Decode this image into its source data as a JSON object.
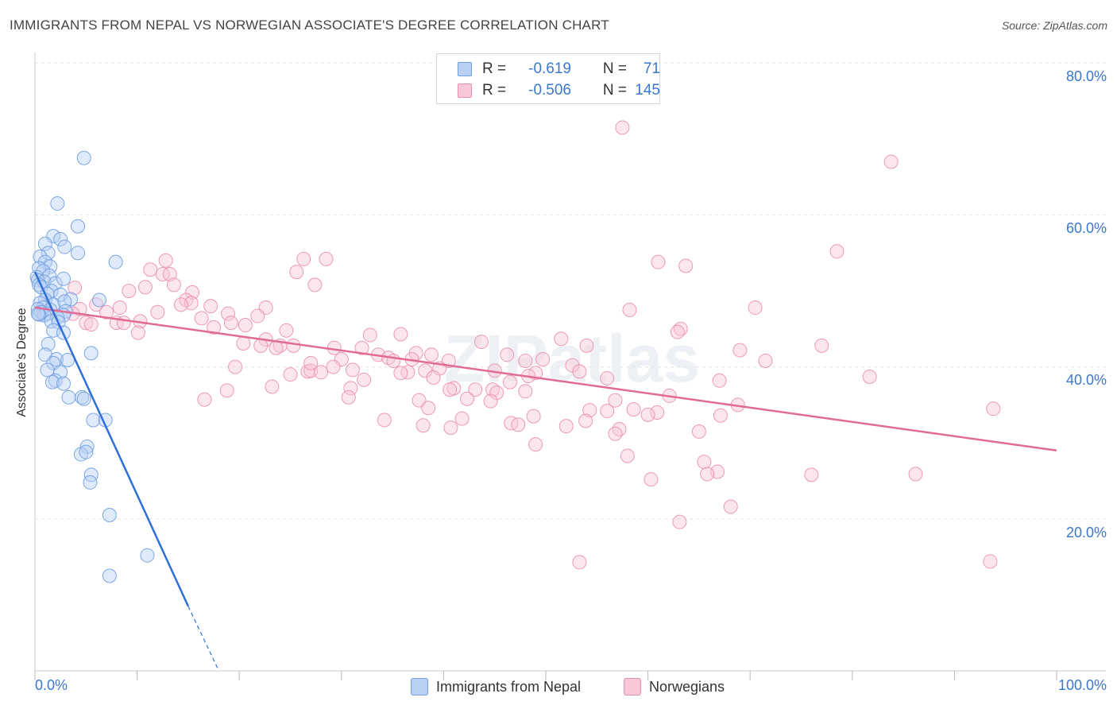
{
  "title": "IMMIGRANTS FROM NEPAL VS NORWEGIAN ASSOCIATE'S DEGREE CORRELATION CHART",
  "source": "Source: ZipAtlas.com",
  "watermark": "ZIPatlas",
  "colors": {
    "blue_fill": "#b8d0f3",
    "blue_stroke": "#6f9fe0",
    "blue_line": "#2f6fd8",
    "pink_fill": "#f9c7d6",
    "pink_stroke": "#ec8fae",
    "pink_line": "#e06b97",
    "accent_text": "#3a78d0"
  },
  "legend": {
    "rows": [
      {
        "r_label": "R =",
        "r_value": "-0.619",
        "n_label": "N =",
        "n_value": "71"
      },
      {
        "r_label": "R =",
        "r_value": "-0.506",
        "n_label": "N =",
        "n_value": "145"
      }
    ]
  },
  "bottom_legend": {
    "series1": "Immigrants from Nepal",
    "series2": "Norwegians"
  },
  "axes": {
    "x_min_label": "0.0%",
    "x_max_label": "100.0%",
    "y_ticks": [
      "80.0%",
      "60.0%",
      "40.0%",
      "20.0%"
    ],
    "ylabel": "Associate's Degree"
  },
  "chart_data": {
    "type": "scatter",
    "title": "IMMIGRANTS FROM NEPAL VS NORWEGIAN ASSOCIATE'S DEGREE CORRELATION CHART",
    "xlabel": "",
    "ylabel": "Associate's Degree",
    "xlim": [
      0,
      100
    ],
    "ylim": [
      0,
      82
    ],
    "series": [
      {
        "name": "Immigrants from Nepal",
        "R": -0.619,
        "N": 71,
        "trend": {
          "x": [
            0,
            15
          ],
          "y": [
            52.5,
            8.5
          ],
          "dashed_to": {
            "x": 18,
            "y": 0
          }
        },
        "points": [
          [
            4.8,
            67.5
          ],
          [
            2.2,
            61.5
          ],
          [
            4.2,
            58.5
          ],
          [
            1.8,
            57.2
          ],
          [
            2.5,
            56.8
          ],
          [
            1.0,
            56.2
          ],
          [
            2.9,
            55.8
          ],
          [
            4.2,
            55.0
          ],
          [
            1.3,
            55.0
          ],
          [
            0.5,
            54.5
          ],
          [
            1.0,
            53.8
          ],
          [
            7.9,
            53.8
          ],
          [
            1.5,
            53.2
          ],
          [
            0.4,
            53.0
          ],
          [
            0.8,
            52.6
          ],
          [
            1.4,
            52.0
          ],
          [
            0.2,
            51.8
          ],
          [
            0.3,
            51.4
          ],
          [
            0.9,
            51.2
          ],
          [
            2.0,
            51.0
          ],
          [
            0.4,
            50.8
          ],
          [
            2.8,
            51.6
          ],
          [
            0.6,
            50.5
          ],
          [
            1.6,
            50.0
          ],
          [
            1.2,
            49.6
          ],
          [
            2.5,
            49.5
          ],
          [
            6.3,
            48.8
          ],
          [
            3.5,
            48.9
          ],
          [
            1.0,
            48.8
          ],
          [
            0.5,
            48.4
          ],
          [
            1.8,
            48.2
          ],
          [
            2.9,
            48.6
          ],
          [
            0.8,
            47.8
          ],
          [
            0.3,
            47.6
          ],
          [
            1.5,
            47.5
          ],
          [
            3.0,
            47.3
          ],
          [
            1.2,
            47.0
          ],
          [
            0.6,
            47.2
          ],
          [
            0.9,
            46.8
          ],
          [
            2.8,
            46.8
          ],
          [
            2.2,
            46.5
          ],
          [
            0.4,
            46.9
          ],
          [
            1.6,
            46.0
          ],
          [
            2.3,
            45.9
          ],
          [
            1.8,
            44.8
          ],
          [
            2.8,
            44.5
          ],
          [
            1.3,
            43.0
          ],
          [
            5.5,
            41.8
          ],
          [
            1.0,
            41.6
          ],
          [
            2.1,
            41.0
          ],
          [
            1.8,
            40.5
          ],
          [
            3.2,
            40.9
          ],
          [
            1.2,
            39.6
          ],
          [
            2.5,
            39.3
          ],
          [
            2.0,
            38.2
          ],
          [
            1.7,
            38.0
          ],
          [
            2.8,
            37.8
          ],
          [
            3.3,
            36.0
          ],
          [
            4.6,
            36.0
          ],
          [
            4.8,
            35.8
          ],
          [
            5.7,
            33.0
          ],
          [
            6.9,
            33.0
          ],
          [
            5.1,
            29.5
          ],
          [
            4.5,
            28.5
          ],
          [
            5.0,
            28.8
          ],
          [
            5.5,
            25.8
          ],
          [
            5.4,
            24.8
          ],
          [
            7.3,
            20.5
          ],
          [
            11.0,
            15.2
          ],
          [
            7.3,
            12.5
          ],
          [
            0.3,
            47.0
          ]
        ]
      },
      {
        "name": "Norwegians",
        "R": -0.506,
        "N": 145,
        "trend": {
          "x": [
            0,
            100
          ],
          "y": [
            47.8,
            29.0
          ]
        },
        "points": [
          [
            57.5,
            71.5
          ],
          [
            83.8,
            67.0
          ],
          [
            78.5,
            55.2
          ],
          [
            61.0,
            53.8
          ],
          [
            63.7,
            53.3
          ],
          [
            26.3,
            54.2
          ],
          [
            28.5,
            54.2
          ],
          [
            12.8,
            54.0
          ],
          [
            11.3,
            52.8
          ],
          [
            12.5,
            52.2
          ],
          [
            13.2,
            52.2
          ],
          [
            25.6,
            52.5
          ],
          [
            13.6,
            50.8
          ],
          [
            10.8,
            50.5
          ],
          [
            27.4,
            50.8
          ],
          [
            3.9,
            50.4
          ],
          [
            9.2,
            50.0
          ],
          [
            15.4,
            49.8
          ],
          [
            14.8,
            48.8
          ],
          [
            15.3,
            48.4
          ],
          [
            6.0,
            48.2
          ],
          [
            14.3,
            48.2
          ],
          [
            17.2,
            48.0
          ],
          [
            22.6,
            47.8
          ],
          [
            4.4,
            47.6
          ],
          [
            8.3,
            47.8
          ],
          [
            7.0,
            47.2
          ],
          [
            18.9,
            47.0
          ],
          [
            3.7,
            47.0
          ],
          [
            70.5,
            47.8
          ],
          [
            21.8,
            46.7
          ],
          [
            16.3,
            46.4
          ],
          [
            10.3,
            46.0
          ],
          [
            8.0,
            45.8
          ],
          [
            8.7,
            45.8
          ],
          [
            19.2,
            45.8
          ],
          [
            5.0,
            45.8
          ],
          [
            5.5,
            45.6
          ],
          [
            17.5,
            45.2
          ],
          [
            24.6,
            44.8
          ],
          [
            10.1,
            44.5
          ],
          [
            63.2,
            45.0
          ],
          [
            62.9,
            44.6
          ],
          [
            32.8,
            44.2
          ],
          [
            35.8,
            44.3
          ],
          [
            22.6,
            43.6
          ],
          [
            51.5,
            43.7
          ],
          [
            43.7,
            43.3
          ],
          [
            20.4,
            43.1
          ],
          [
            22.1,
            42.8
          ],
          [
            24.0,
            42.8
          ],
          [
            29.3,
            42.5
          ],
          [
            25.3,
            42.8
          ],
          [
            32.0,
            42.5
          ],
          [
            23.6,
            42.5
          ],
          [
            69.0,
            42.2
          ],
          [
            33.6,
            41.6
          ],
          [
            46.2,
            41.6
          ],
          [
            38.8,
            41.6
          ],
          [
            37.3,
            41.8
          ],
          [
            34.6,
            41.2
          ],
          [
            77.0,
            42.8
          ],
          [
            36.9,
            41.0
          ],
          [
            30.0,
            41.0
          ],
          [
            35.1,
            40.8
          ],
          [
            40.5,
            40.8
          ],
          [
            48.0,
            40.8
          ],
          [
            49.7,
            41.0
          ],
          [
            71.5,
            40.8
          ],
          [
            52.6,
            40.2
          ],
          [
            19.6,
            40.0
          ],
          [
            29.2,
            40.0
          ],
          [
            39.6,
            39.8
          ],
          [
            26.7,
            39.4
          ],
          [
            27.0,
            39.5
          ],
          [
            28.0,
            39.3
          ],
          [
            36.5,
            39.3
          ],
          [
            38.2,
            39.5
          ],
          [
            31.1,
            39.6
          ],
          [
            35.8,
            39.2
          ],
          [
            45.0,
            39.5
          ],
          [
            49.0,
            39.2
          ],
          [
            53.3,
            39.4
          ],
          [
            25.0,
            39.0
          ],
          [
            32.2,
            38.3
          ],
          [
            39.0,
            38.6
          ],
          [
            48.3,
            38.8
          ],
          [
            46.5,
            38.0
          ],
          [
            56.0,
            38.5
          ],
          [
            67.0,
            38.2
          ],
          [
            81.7,
            38.7
          ],
          [
            30.9,
            37.2
          ],
          [
            41.0,
            37.2
          ],
          [
            43.1,
            37.0
          ],
          [
            40.6,
            37.0
          ],
          [
            44.8,
            37.0
          ],
          [
            23.2,
            37.4
          ],
          [
            18.8,
            36.9
          ],
          [
            45.2,
            36.6
          ],
          [
            48.0,
            36.8
          ],
          [
            62.1,
            36.2
          ],
          [
            30.7,
            36.0
          ],
          [
            42.3,
            35.8
          ],
          [
            37.6,
            35.6
          ],
          [
            16.6,
            35.7
          ],
          [
            56.8,
            35.6
          ],
          [
            68.8,
            35.0
          ],
          [
            58.6,
            34.4
          ],
          [
            54.3,
            34.3
          ],
          [
            38.5,
            34.6
          ],
          [
            56.0,
            34.2
          ],
          [
            93.8,
            34.5
          ],
          [
            60.9,
            34.0
          ],
          [
            60.0,
            33.7
          ],
          [
            48.8,
            33.5
          ],
          [
            67.1,
            33.6
          ],
          [
            41.8,
            33.2
          ],
          [
            34.2,
            33.0
          ],
          [
            53.9,
            32.9
          ],
          [
            46.6,
            32.6
          ],
          [
            47.3,
            32.4
          ],
          [
            38.0,
            32.3
          ],
          [
            52.0,
            32.2
          ],
          [
            40.7,
            32.0
          ],
          [
            57.2,
            31.8
          ],
          [
            65.0,
            31.5
          ],
          [
            56.8,
            31.2
          ],
          [
            49.0,
            29.8
          ],
          [
            58.0,
            28.3
          ],
          [
            65.5,
            27.5
          ],
          [
            66.8,
            26.2
          ],
          [
            65.8,
            25.9
          ],
          [
            76.0,
            25.8
          ],
          [
            86.2,
            25.9
          ],
          [
            60.3,
            25.2
          ],
          [
            68.1,
            21.6
          ],
          [
            63.1,
            19.6
          ],
          [
            53.3,
            14.3
          ],
          [
            93.5,
            14.4
          ],
          [
            58.2,
            47.5
          ],
          [
            54.0,
            42.8
          ],
          [
            44.6,
            35.5
          ],
          [
            20.6,
            45.5
          ],
          [
            12.0,
            47.2
          ],
          [
            27.0,
            40.5
          ]
        ]
      }
    ]
  }
}
